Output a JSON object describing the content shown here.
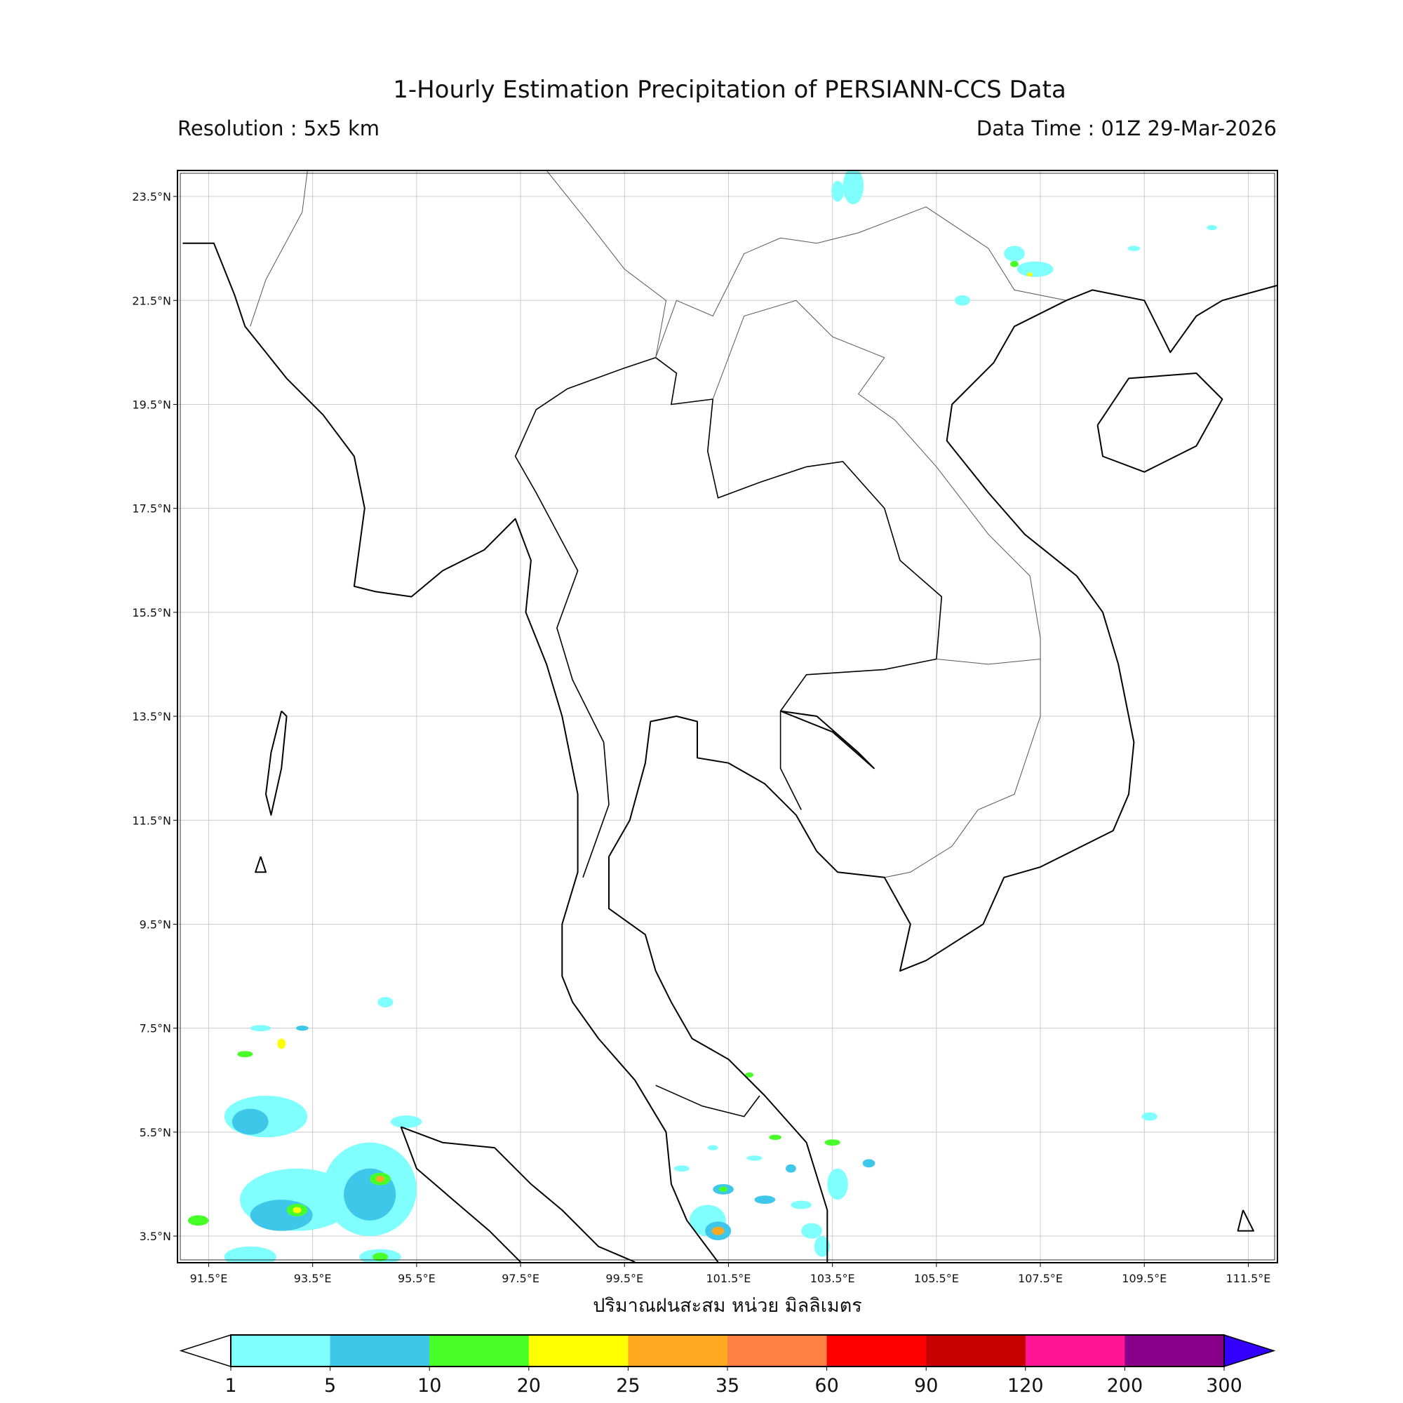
{
  "header": {
    "title": "1-Hourly Estimation Precipitation of PERSIANN-CCS Data",
    "resolution": "Resolution : 5x5 km",
    "data_time": "Data Time : 01Z 29-Mar-2026"
  },
  "map": {
    "lon_ticks": [
      "91.5°E",
      "93.5°E",
      "95.5°E",
      "97.5°E",
      "99.5°E",
      "101.5°E",
      "103.5°E",
      "105.5°E",
      "107.5°E",
      "109.5°E",
      "111.5°E"
    ],
    "lat_ticks": [
      "23.5°N",
      "21.5°N",
      "19.5°N",
      "17.5°N",
      "15.5°N",
      "13.5°N",
      "11.5°N",
      "9.5°N",
      "7.5°N",
      "5.5°N",
      "3.5°N"
    ],
    "extent_lon": [
      90.9,
      112.1
    ],
    "extent_lat": [
      3.0,
      24.0
    ],
    "grid": true
  },
  "colorbar": {
    "label": "ปริมาณฝนสะสม หน่วย มิลลิเมตร",
    "ticks": [
      "1",
      "5",
      "10",
      "20",
      "25",
      "35",
      "60",
      "90",
      "120",
      "200",
      "300"
    ],
    "colors": [
      "#80FFFF",
      "#3FC7EA",
      "#48FF2A",
      "#FFFF00",
      "#FFA820",
      "#FF8040",
      "#FF0000",
      "#C80000",
      "#FF1493",
      "#8B008B"
    ],
    "under_color": "#FFFFFF",
    "over_color": "#3300FF",
    "units": "mm"
  }
}
